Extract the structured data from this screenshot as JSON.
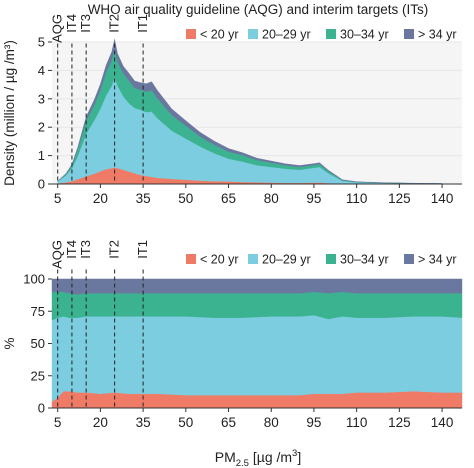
{
  "figure_title": "WHO air quality guideline (AQG) and interim targets (ITs)",
  "xlabel_prefix": "PM",
  "xlabel_sub": "2.5",
  "xlabel_suffix": " [µg /m",
  "xlabel_sup": "3",
  "xlabel_close": "]",
  "colors": {
    "lt20": "#ef7b67",
    "y20_29": "#7ccde0",
    "y30_34": "#3bb391",
    "gt34": "#6a789f",
    "axis_bg": "#f5f5f5"
  },
  "chart_data": [
    {
      "type": "area",
      "stacked": true,
      "ylabel": "Density (million / µg /m³)",
      "ylim": [
        0,
        5
      ],
      "xlim": [
        3,
        147
      ],
      "yticks": [
        "0",
        "1",
        "2",
        "3",
        "4",
        "5"
      ],
      "xticks": [
        "5",
        "20",
        "35",
        "50",
        "65",
        "80",
        "95",
        "110",
        "125",
        "140"
      ],
      "legend": [
        "< 20 yr",
        "20–29 yr",
        "30–34 yr",
        "> 34 yr"
      ],
      "legend_position": "top-right",
      "guidelines": [
        {
          "label": "AQG",
          "x": 5
        },
        {
          "label": "IT4",
          "x": 10
        },
        {
          "label": "IT3",
          "x": 15
        },
        {
          "label": "IT2",
          "x": 25
        },
        {
          "label": "IT1",
          "x": 35
        }
      ],
      "x": [
        5,
        8,
        10,
        12,
        15,
        18,
        20,
        22,
        24,
        25,
        26,
        28,
        30,
        32,
        34,
        36,
        38,
        40,
        45,
        50,
        55,
        60,
        65,
        70,
        75,
        80,
        85,
        90,
        95,
        97,
        100,
        103,
        105,
        110,
        120,
        130,
        140
      ],
      "series": [
        {
          "name": "< 20 yr",
          "values": [
            0.02,
            0.06,
            0.1,
            0.17,
            0.27,
            0.37,
            0.45,
            0.52,
            0.56,
            0.58,
            0.56,
            0.5,
            0.44,
            0.38,
            0.32,
            0.28,
            0.25,
            0.22,
            0.18,
            0.15,
            0.12,
            0.1,
            0.09,
            0.07,
            0.06,
            0.05,
            0.04,
            0.04,
            0.05,
            0.05,
            0.03,
            0.02,
            0.01,
            0.01,
            0.005,
            0.003,
            0.002
          ]
        },
        {
          "name": "20–29 yr",
          "values": [
            0.06,
            0.25,
            0.45,
            0.8,
            1.5,
            1.9,
            2.2,
            2.6,
            2.9,
            3.2,
            2.9,
            2.6,
            2.4,
            2.3,
            2.3,
            2.25,
            2.3,
            2.1,
            1.7,
            1.45,
            1.2,
            0.98,
            0.8,
            0.72,
            0.6,
            0.55,
            0.5,
            0.46,
            0.52,
            0.55,
            0.35,
            0.2,
            0.1,
            0.05,
            0.03,
            0.02,
            0.01
          ]
        },
        {
          "name": "30–34 yr",
          "values": [
            0.01,
            0.05,
            0.1,
            0.22,
            0.45,
            0.55,
            0.65,
            0.8,
            0.9,
            1.0,
            0.85,
            0.8,
            0.8,
            0.7,
            0.7,
            0.72,
            0.75,
            0.7,
            0.55,
            0.45,
            0.35,
            0.3,
            0.25,
            0.22,
            0.18,
            0.15,
            0.12,
            0.1,
            0.1,
            0.1,
            0.07,
            0.04,
            0.02,
            0.01,
            0.005,
            0.003,
            0.002
          ]
        },
        {
          "name": "> 34 yr",
          "values": [
            0.005,
            0.02,
            0.04,
            0.08,
            0.15,
            0.18,
            0.22,
            0.26,
            0.3,
            0.32,
            0.28,
            0.25,
            0.26,
            0.25,
            0.25,
            0.28,
            0.3,
            0.28,
            0.22,
            0.18,
            0.15,
            0.13,
            0.11,
            0.09,
            0.07,
            0.06,
            0.05,
            0.05,
            0.05,
            0.05,
            0.04,
            0.03,
            0.02,
            0.01,
            0.005,
            0.003,
            0.002
          ]
        }
      ]
    },
    {
      "type": "area",
      "stacked": true,
      "ylabel": "%",
      "ylim": [
        0,
        100
      ],
      "xlim": [
        3,
        147
      ],
      "yticks": [
        "0",
        "25",
        "50",
        "75",
        "100"
      ],
      "xticks": [
        "5",
        "20",
        "35",
        "50",
        "65",
        "80",
        "95",
        "110",
        "125",
        "140"
      ],
      "legend": [
        "< 20 yr",
        "20–29 yr",
        "30–34 yr",
        "> 34 yr"
      ],
      "legend_position": "top-right",
      "guidelines": [
        {
          "label": "AQG",
          "x": 5
        },
        {
          "label": "IT4",
          "x": 10
        },
        {
          "label": "IT3",
          "x": 15
        },
        {
          "label": "IT2",
          "x": 25
        },
        {
          "label": "IT1",
          "x": 35
        }
      ],
      "x": [
        3,
        5,
        7,
        9,
        12,
        15,
        20,
        25,
        30,
        35,
        40,
        50,
        60,
        70,
        80,
        90,
        95,
        100,
        105,
        110,
        120,
        130,
        140,
        147
      ],
      "series": [
        {
          "name": "< 20 yr",
          "values": [
            5,
            8,
            13,
            13,
            12,
            12,
            11,
            12,
            11,
            11,
            11,
            10,
            10,
            10,
            10,
            10,
            11,
            11,
            11,
            12,
            12,
            13,
            12,
            12
          ]
        },
        {
          "name": "20–29 yr",
          "values": [
            63,
            62,
            58,
            57,
            58,
            59,
            60,
            59,
            60,
            60,
            60,
            61,
            60,
            60,
            61,
            61,
            61,
            58,
            60,
            58,
            58,
            58,
            59,
            58
          ]
        },
        {
          "name": "30–34 yr",
          "values": [
            22,
            20,
            19,
            19,
            18,
            18,
            18,
            18,
            18,
            18,
            18,
            18,
            19,
            19,
            18,
            18,
            18,
            20,
            19,
            19,
            19,
            18,
            18,
            19
          ]
        },
        {
          "name": "> 34 yr",
          "values": [
            10,
            10,
            10,
            11,
            12,
            11,
            11,
            11,
            11,
            11,
            11,
            11,
            11,
            11,
            11,
            11,
            10,
            11,
            10,
            11,
            11,
            11,
            11,
            11
          ]
        }
      ]
    }
  ]
}
